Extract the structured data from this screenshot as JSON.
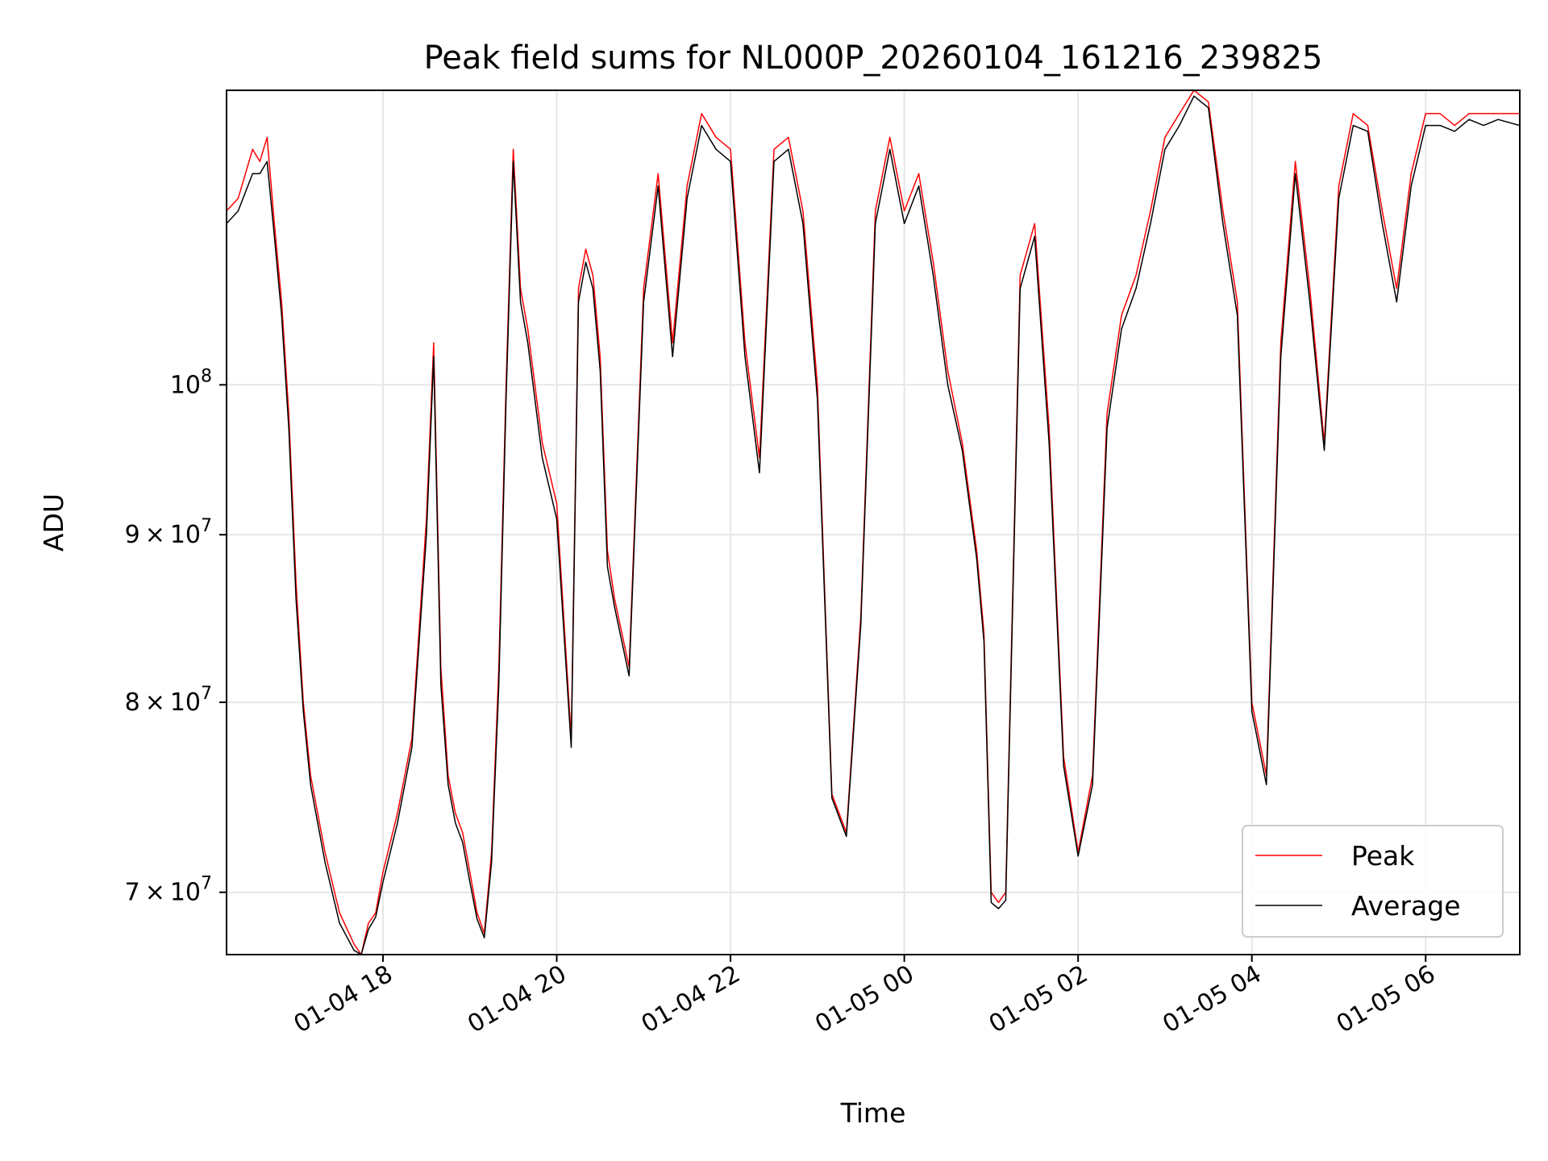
{
  "chart_data": {
    "type": "line",
    "title": "Peak field sums for NL000P_20260104_161216_239825",
    "xlabel": "Time",
    "ylabel": "ADU",
    "yscale": "log",
    "xlim": [
      "2026-01-04 16:12",
      "2026-01-05 07:05"
    ],
    "ylim": [
      67000000,
      123000000
    ],
    "grid": true,
    "legend_position": "lower-right",
    "x_ticks": [
      {
        "value": "2026-01-04 18:00",
        "label": "01-04 18"
      },
      {
        "value": "2026-01-04 20:00",
        "label": "01-04 20"
      },
      {
        "value": "2026-01-04 22:00",
        "label": "01-04 22"
      },
      {
        "value": "2026-01-05 00:00",
        "label": "01-05 00"
      },
      {
        "value": "2026-01-05 02:00",
        "label": "01-05 02"
      },
      {
        "value": "2026-01-05 04:00",
        "label": "01-05 04"
      },
      {
        "value": "2026-01-05 06:00",
        "label": "01-05 06"
      }
    ],
    "y_ticks": [
      {
        "value": 70000000,
        "mantissa": "7",
        "label": "7 × 10^7"
      },
      {
        "value": 80000000,
        "mantissa": "8",
        "label": "8 × 10^7"
      },
      {
        "value": 90000000,
        "mantissa": "9",
        "label": "9 × 10^7"
      },
      {
        "value": 100000000,
        "mantissa": "",
        "label": "10^8"
      }
    ],
    "series": [
      {
        "name": "Peak",
        "color": "#ff0000",
        "x": [
          "2026-01-04 16:12",
          "2026-01-04 16:20",
          "2026-01-04 16:30",
          "2026-01-04 16:35",
          "2026-01-04 16:40",
          "2026-01-04 16:45",
          "2026-01-04 16:50",
          "2026-01-04 16:55",
          "2026-01-04 17:00",
          "2026-01-04 17:05",
          "2026-01-04 17:10",
          "2026-01-04 17:20",
          "2026-01-04 17:30",
          "2026-01-04 17:40",
          "2026-01-04 17:45",
          "2026-01-04 17:50",
          "2026-01-04 17:55",
          "2026-01-04 18:00",
          "2026-01-04 18:10",
          "2026-01-04 18:20",
          "2026-01-04 18:30",
          "2026-01-04 18:35",
          "2026-01-04 18:40",
          "2026-01-04 18:45",
          "2026-01-04 18:50",
          "2026-01-04 18:55",
          "2026-01-04 19:00",
          "2026-01-04 19:05",
          "2026-01-04 19:10",
          "2026-01-04 19:15",
          "2026-01-04 19:20",
          "2026-01-04 19:25",
          "2026-01-04 19:30",
          "2026-01-04 19:35",
          "2026-01-04 19:40",
          "2026-01-04 19:50",
          "2026-01-04 20:00",
          "2026-01-04 20:10",
          "2026-01-04 20:15",
          "2026-01-04 20:20",
          "2026-01-04 20:25",
          "2026-01-04 20:30",
          "2026-01-04 20:35",
          "2026-01-04 20:40",
          "2026-01-04 20:50",
          "2026-01-04 21:00",
          "2026-01-04 21:10",
          "2026-01-04 21:20",
          "2026-01-04 21:30",
          "2026-01-04 21:40",
          "2026-01-04 21:50",
          "2026-01-04 22:00",
          "2026-01-04 22:10",
          "2026-01-04 22:20",
          "2026-01-04 22:30",
          "2026-01-04 22:40",
          "2026-01-04 22:50",
          "2026-01-04 23:00",
          "2026-01-04 23:10",
          "2026-01-04 23:20",
          "2026-01-04 23:30",
          "2026-01-04 23:40",
          "2026-01-04 23:50",
          "2026-01-05 00:00",
          "2026-01-05 00:10",
          "2026-01-05 00:20",
          "2026-01-05 00:30",
          "2026-01-05 00:40",
          "2026-01-05 00:50",
          "2026-01-05 00:55",
          "2026-01-05 01:00",
          "2026-01-05 01:05",
          "2026-01-05 01:10",
          "2026-01-05 01:20",
          "2026-01-05 01:30",
          "2026-01-05 01:40",
          "2026-01-05 01:50",
          "2026-01-05 02:00",
          "2026-01-05 02:10",
          "2026-01-05 02:20",
          "2026-01-05 02:30",
          "2026-01-05 02:40",
          "2026-01-05 02:50",
          "2026-01-05 03:00",
          "2026-01-05 03:10",
          "2026-01-05 03:20",
          "2026-01-05 03:30",
          "2026-01-05 03:40",
          "2026-01-05 03:50",
          "2026-01-05 04:00",
          "2026-01-05 04:10",
          "2026-01-05 04:20",
          "2026-01-05 04:30",
          "2026-01-05 04:40",
          "2026-01-05 04:50",
          "2026-01-05 05:00",
          "2026-01-05 05:10",
          "2026-01-05 05:20",
          "2026-01-05 05:30",
          "2026-01-05 05:40",
          "2026-01-05 05:50",
          "2026-01-05 06:00",
          "2026-01-05 06:10",
          "2026-01-05 06:20",
          "2026-01-05 06:30",
          "2026-01-05 06:40",
          "2026-01-05 06:50",
          "2026-01-05 07:05"
        ],
        "y": [
          113000000,
          114000000,
          118000000,
          117000000,
          119000000,
          112000000,
          106000000,
          98000000,
          87000000,
          80000000,
          76000000,
          72000000,
          69000000,
          67500000,
          67000000,
          68500000,
          69000000,
          71000000,
          74000000,
          78000000,
          91000000,
          103000000,
          82000000,
          76000000,
          74000000,
          73000000,
          71000000,
          69000000,
          68000000,
          72000000,
          82000000,
          100000000,
          118000000,
          107000000,
          104000000,
          96000000,
          92000000,
          78000000,
          107000000,
          110000000,
          108000000,
          102000000,
          89000000,
          86000000,
          82000000,
          107000000,
          116000000,
          103000000,
          115000000,
          121000000,
          119000000,
          118000000,
          103000000,
          95000000,
          118000000,
          119000000,
          113000000,
          100000000,
          75000000,
          73000000,
          85000000,
          113000000,
          119000000,
          113000000,
          116000000,
          109000000,
          101000000,
          96000000,
          89000000,
          84000000,
          70000000,
          69500000,
          70000000,
          108000000,
          112000000,
          97000000,
          77000000,
          72000000,
          76000000,
          98000000,
          105000000,
          108000000,
          113000000,
          119000000,
          121000000,
          123000000,
          122000000,
          113000000,
          106000000,
          80000000,
          76000000,
          103000000,
          117000000,
          107000000,
          96000000,
          115000000,
          121000000,
          120000000,
          113000000,
          107000000,
          116000000,
          121000000,
          121000000,
          120000000,
          121000000,
          121000000,
          121000000,
          121000000
        ],
        "note_values": ""
      },
      {
        "name": "Average",
        "color": "#000000",
        "x": [
          "2026-01-04 16:12",
          "2026-01-04 16:20",
          "2026-01-04 16:30",
          "2026-01-04 16:35",
          "2026-01-04 16:40",
          "2026-01-04 16:45",
          "2026-01-04 16:50",
          "2026-01-04 16:55",
          "2026-01-04 17:00",
          "2026-01-04 17:05",
          "2026-01-04 17:10",
          "2026-01-04 17:20",
          "2026-01-04 17:30",
          "2026-01-04 17:40",
          "2026-01-04 17:45",
          "2026-01-04 17:50",
          "2026-01-04 17:55",
          "2026-01-04 18:00",
          "2026-01-04 18:10",
          "2026-01-04 18:20",
          "2026-01-04 18:30",
          "2026-01-04 18:35",
          "2026-01-04 18:40",
          "2026-01-04 18:45",
          "2026-01-04 18:50",
          "2026-01-04 18:55",
          "2026-01-04 19:00",
          "2026-01-04 19:05",
          "2026-01-04 19:10",
          "2026-01-04 19:15",
          "2026-01-04 19:20",
          "2026-01-04 19:25",
          "2026-01-04 19:30",
          "2026-01-04 19:35",
          "2026-01-04 19:40",
          "2026-01-04 19:50",
          "2026-01-04 20:00",
          "2026-01-04 20:10",
          "2026-01-04 20:15",
          "2026-01-04 20:20",
          "2026-01-04 20:25",
          "2026-01-04 20:30",
          "2026-01-04 20:35",
          "2026-01-04 20:40",
          "2026-01-04 20:50",
          "2026-01-04 21:00",
          "2026-01-04 21:10",
          "2026-01-04 21:20",
          "2026-01-04 21:30",
          "2026-01-04 21:40",
          "2026-01-04 21:50",
          "2026-01-04 22:00",
          "2026-01-04 22:10",
          "2026-01-04 22:20",
          "2026-01-04 22:30",
          "2026-01-04 22:40",
          "2026-01-04 22:50",
          "2026-01-04 23:00",
          "2026-01-04 23:10",
          "2026-01-04 23:20",
          "2026-01-04 23:30",
          "2026-01-04 23:40",
          "2026-01-04 23:50",
          "2026-01-05 00:00",
          "2026-01-05 00:10",
          "2026-01-05 00:20",
          "2026-01-05 00:30",
          "2026-01-05 00:40",
          "2026-01-05 00:50",
          "2026-01-05 00:55",
          "2026-01-05 01:00",
          "2026-01-05 01:05",
          "2026-01-05 01:10",
          "2026-01-05 01:20",
          "2026-01-05 01:30",
          "2026-01-05 01:40",
          "2026-01-05 01:50",
          "2026-01-05 02:00",
          "2026-01-05 02:10",
          "2026-01-05 02:20",
          "2026-01-05 02:30",
          "2026-01-05 02:40",
          "2026-01-05 02:50",
          "2026-01-05 03:00",
          "2026-01-05 03:10",
          "2026-01-05 03:20",
          "2026-01-05 03:30",
          "2026-01-05 03:40",
          "2026-01-05 03:50",
          "2026-01-05 04:00",
          "2026-01-05 04:10",
          "2026-01-05 04:20",
          "2026-01-05 04:30",
          "2026-01-05 04:40",
          "2026-01-05 04:50",
          "2026-01-05 05:00",
          "2026-01-05 05:10",
          "2026-01-05 05:20",
          "2026-01-05 05:30",
          "2026-01-05 05:40",
          "2026-01-05 05:50",
          "2026-01-05 06:00",
          "2026-01-05 06:10",
          "2026-01-05 06:20",
          "2026-01-05 06:30",
          "2026-01-05 06:40",
          "2026-01-05 06:50",
          "2026-01-05 07:05"
        ],
        "y": [
          112000000,
          113000000,
          116000000,
          116000000,
          117000000,
          111000000,
          105000000,
          97000000,
          86000000,
          79500000,
          75500000,
          71500000,
          68500000,
          67200000,
          67000000,
          68200000,
          68800000,
          70500000,
          73500000,
          77500000,
          90000000,
          102000000,
          81000000,
          75500000,
          73500000,
          72500000,
          70500000,
          68700000,
          67800000,
          71500000,
          81000000,
          99000000,
          117000000,
          106000000,
          103000000,
          95000000,
          91000000,
          77500000,
          106000000,
          109000000,
          107000000,
          101000000,
          88000000,
          85500000,
          81500000,
          106000000,
          115000000,
          102000000,
          114000000,
          120000000,
          118000000,
          117000000,
          102000000,
          94000000,
          117000000,
          118000000,
          112000000,
          99000000,
          74800000,
          72800000,
          84500000,
          112000000,
          118000000,
          112000000,
          115000000,
          108000000,
          100000000,
          95500000,
          88500000,
          83500000,
          69500000,
          69200000,
          69600000,
          107000000,
          111000000,
          96000000,
          76500000,
          71800000,
          75500000,
          97000000,
          104000000,
          107000000,
          112000000,
          118000000,
          120000000,
          122500000,
          121500000,
          112000000,
          105000000,
          79500000,
          75500000,
          102000000,
          116000000,
          106000000,
          95500000,
          114000000,
          120000000,
          119500000,
          112000000,
          106000000,
          115000000,
          120000000,
          120000000,
          119500000,
          120500000,
          120000000,
          120500000,
          120000000
        ]
      }
    ]
  },
  "legend": {
    "items": [
      {
        "label": "Peak",
        "color": "#ff0000"
      },
      {
        "label": "Average",
        "color": "#000000"
      }
    ]
  }
}
